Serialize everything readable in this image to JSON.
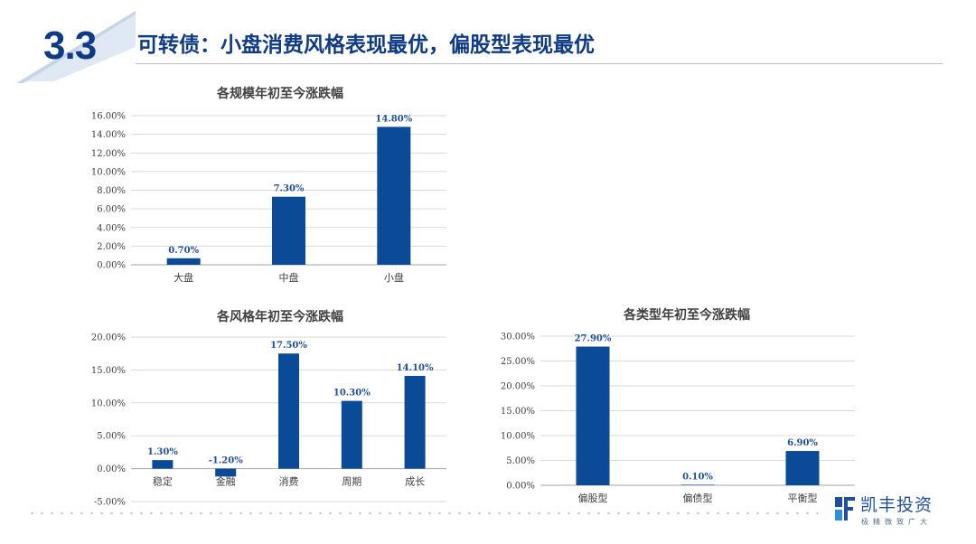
{
  "header": {
    "section_number": "3.3",
    "title": "可转债：小盘消费风格表现最优，偏股型表现最优"
  },
  "logo": {
    "name": "凯丰投资",
    "slogan": "极精微致广大"
  },
  "chart_data": [
    {
      "type": "bar",
      "title": "各规模年初至今涨跌幅",
      "categories": [
        "大盘",
        "中盘",
        "小盘"
      ],
      "values": [
        0.7,
        7.3,
        14.8
      ],
      "data_labels": [
        "0.70%",
        "7.30%",
        "14.80%"
      ],
      "ylim": [
        0,
        16
      ],
      "yticks": [
        0,
        2,
        4,
        6,
        8,
        10,
        12,
        14,
        16
      ],
      "ytick_labels": [
        "0.00%",
        "2.00%",
        "4.00%",
        "6.00%",
        "8.00%",
        "10.00%",
        "12.00%",
        "14.00%",
        "16.00%"
      ],
      "grid": true,
      "color": "#0b4a97"
    },
    {
      "type": "bar",
      "title": "各风格年初至今涨跌幅",
      "categories": [
        "稳定",
        "金融",
        "消费",
        "周期",
        "成长"
      ],
      "values": [
        1.3,
        -1.2,
        17.5,
        10.3,
        14.1
      ],
      "data_labels": [
        "1.30%",
        "-1.20%",
        "17.50%",
        "10.30%",
        "14.10%"
      ],
      "ylim": [
        -5,
        20
      ],
      "yticks": [
        -5,
        0,
        5,
        10,
        15,
        20
      ],
      "ytick_labels": [
        "-5.00%",
        "0.00%",
        "5.00%",
        "10.00%",
        "15.00%",
        "20.00%"
      ],
      "grid": true,
      "color": "#0b4a97"
    },
    {
      "type": "bar",
      "title": "各类型年初至今涨跌幅",
      "categories": [
        "偏股型",
        "偏债型",
        "平衡型"
      ],
      "values": [
        27.9,
        0.1,
        6.9
      ],
      "data_labels": [
        "27.90%",
        "0.10%",
        "6.90%"
      ],
      "ylim": [
        0,
        30
      ],
      "yticks": [
        0,
        5,
        10,
        15,
        20,
        25,
        30
      ],
      "ytick_labels": [
        "0.00%",
        "5.00%",
        "10.00%",
        "15.00%",
        "20.00%",
        "25.00%",
        "30.00%"
      ],
      "grid": true,
      "color": "#0b4a97"
    }
  ]
}
